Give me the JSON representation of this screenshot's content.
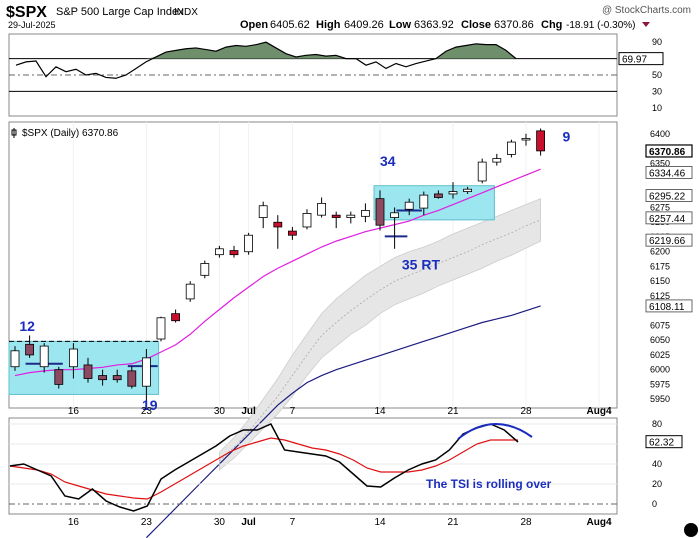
{
  "header": {
    "symbol": "$SPX",
    "name": "S&P 500 Large Cap Index",
    "exchange": "INDX",
    "date": "29-Jul-2025",
    "open_label": "Open",
    "open": "6405.62",
    "high_label": "High",
    "high": "6409.26",
    "low_label": "Low",
    "low": "6363.92",
    "close_label": "Close",
    "close": "6370.86",
    "chg_label": "Chg",
    "chg": "-18.91 (-0.30%)",
    "watermark": "@ StockCharts.com"
  },
  "colors": {
    "up_candle": "#ffffff",
    "down_candle": "#c8102e",
    "hollow_down": "#8b4a62",
    "ma_short": "#e01ee0",
    "ma_long": "#1c1c80",
    "band": "#e6e6e6",
    "rsi_fill": "#6f8f6c",
    "box_fill": "#8be2ec",
    "annot_text": "#1a2dbf",
    "tsi_line": "#000000",
    "tsi_signal": "#e01010"
  },
  "chart_data": [
    {
      "type": "line",
      "role": "upper-indicator",
      "y_ticks": [
        90,
        70,
        50,
        30,
        10
      ],
      "current_value": "69.97",
      "reference_lines": [
        70,
        50,
        30
      ],
      "x_index": [
        0,
        1,
        2,
        3,
        4,
        5,
        6,
        7,
        8,
        9,
        10,
        11,
        12,
        13,
        14,
        15,
        16,
        17,
        18,
        19,
        20,
        21,
        22,
        23,
        24,
        25,
        26,
        27,
        28,
        29,
        30,
        31,
        32,
        33,
        34,
        35,
        36,
        37,
        38,
        39,
        40,
        41,
        42,
        43,
        44,
        45,
        46,
        47,
        48,
        49,
        50
      ],
      "values": [
        62,
        66,
        67,
        48,
        60,
        54,
        57,
        50,
        52,
        47,
        46,
        50,
        58,
        66,
        72,
        78,
        80,
        82,
        83,
        81,
        79,
        84,
        86,
        85,
        87,
        90,
        83,
        76,
        72,
        74,
        75,
        73,
        74,
        70,
        70,
        62,
        66,
        58,
        64,
        60,
        64,
        67,
        70,
        79,
        84,
        86,
        88,
        87,
        87,
        80,
        70
      ]
    },
    {
      "type": "candlestick",
      "role": "price",
      "label": "$SPX (Daily) 6370.86",
      "y_ticks": [
        6400,
        6350,
        6300,
        6275,
        6250,
        6225,
        6200,
        6175,
        6150,
        6125,
        6100,
        6075,
        6050,
        6025,
        6000,
        5975,
        5950
      ],
      "y_tick_labels": [
        "6400",
        "6350",
        "6275",
        "6250",
        "6225",
        "6200",
        "6175",
        "6150",
        "6125",
        "6075",
        "6050",
        "6025",
        "6000",
        "5975",
        "5950"
      ],
      "ylim": [
        5935,
        6420
      ],
      "x_tick_labels": [
        "16",
        "23",
        "30",
        "Jul",
        "7",
        "14",
        "21",
        "28",
        "Aug4"
      ],
      "x_tick_index": [
        4,
        9,
        14,
        16,
        19,
        25,
        30,
        35,
        40
      ],
      "price_tags": [
        "6370.86",
        "6334.46",
        "6295.22",
        "6257.44",
        "6219.66",
        "6108.11"
      ],
      "price_tag_values": [
        6370.86,
        6334.46,
        6295.22,
        6257.44,
        6219.66,
        6108.11
      ],
      "candles": [
        {
          "i": 0,
          "o": 6005,
          "h": 6040,
          "l": 5998,
          "c": 6032,
          "d": false
        },
        {
          "i": 1,
          "o": 6043,
          "h": 6058,
          "l": 6020,
          "c": 6025,
          "d": true,
          "hollow": true
        },
        {
          "i": 2,
          "o": 6005,
          "h": 6045,
          "l": 5995,
          "c": 6040,
          "d": false
        },
        {
          "i": 3,
          "o": 6000,
          "h": 6005,
          "l": 5968,
          "c": 5975,
          "d": true,
          "hollow": true
        },
        {
          "i": 4,
          "o": 6005,
          "h": 6045,
          "l": 5985,
          "c": 6035,
          "d": false
        },
        {
          "i": 5,
          "o": 6008,
          "h": 6020,
          "l": 5978,
          "c": 5985,
          "d": true,
          "hollow": true
        },
        {
          "i": 6,
          "o": 5990,
          "h": 6000,
          "l": 5973,
          "c": 5983,
          "d": true,
          "hollow": true
        },
        {
          "i": 7,
          "o": 5990,
          "h": 6000,
          "l": 5978,
          "c": 5983,
          "d": true,
          "hollow": true
        },
        {
          "i": 8,
          "o": 5998,
          "h": 6006,
          "l": 5968,
          "c": 5972,
          "d": true,
          "hollow": true
        },
        {
          "i": 9,
          "o": 5972,
          "h": 6035,
          "l": 5945,
          "c": 6020,
          "d": false
        },
        {
          "i": 10,
          "o": 6052,
          "h": 6090,
          "l": 6048,
          "c": 6088,
          "d": false
        },
        {
          "i": 11,
          "o": 6095,
          "h": 6102,
          "l": 6080,
          "c": 6083,
          "d": true
        },
        {
          "i": 12,
          "o": 6120,
          "h": 6150,
          "l": 6115,
          "c": 6145,
          "d": false
        },
        {
          "i": 13,
          "o": 6160,
          "h": 6185,
          "l": 6155,
          "c": 6180,
          "d": false
        },
        {
          "i": 14,
          "o": 6195,
          "h": 6210,
          "l": 6190,
          "c": 6205,
          "d": false
        },
        {
          "i": 15,
          "o": 6202,
          "h": 6210,
          "l": 6190,
          "c": 6195,
          "d": true
        },
        {
          "i": 16,
          "o": 6200,
          "h": 6232,
          "l": 6195,
          "c": 6228,
          "d": false
        },
        {
          "i": 17,
          "o": 6258,
          "h": 6285,
          "l": 6240,
          "c": 6278,
          "d": false
        },
        {
          "i": 18,
          "o": 6250,
          "h": 6262,
          "l": 6205,
          "c": 6242,
          "d": true
        },
        {
          "i": 19,
          "o": 6235,
          "h": 6242,
          "l": 6220,
          "c": 6228,
          "d": true
        },
        {
          "i": 20,
          "o": 6242,
          "h": 6272,
          "l": 6238,
          "c": 6265,
          "d": false
        },
        {
          "i": 21,
          "o": 6262,
          "h": 6292,
          "l": 6258,
          "c": 6282,
          "d": false
        },
        {
          "i": 22,
          "o": 6262,
          "h": 6268,
          "l": 6240,
          "c": 6258,
          "d": true
        },
        {
          "i": 23,
          "o": 6258,
          "h": 6268,
          "l": 6248,
          "c": 6262,
          "d": false
        },
        {
          "i": 24,
          "o": 6260,
          "h": 6282,
          "l": 6250,
          "c": 6270,
          "d": false
        },
        {
          "i": 25,
          "o": 6290,
          "h": 6304,
          "l": 6236,
          "c": 6245,
          "d": true,
          "hollow": true
        },
        {
          "i": 26,
          "o": 6258,
          "h": 6275,
          "l": 6205,
          "c": 6266,
          "d": false
        },
        {
          "i": 27,
          "o": 6272,
          "h": 6290,
          "l": 6262,
          "c": 6284,
          "d": false
        },
        {
          "i": 28,
          "o": 6274,
          "h": 6302,
          "l": 6262,
          "c": 6296,
          "d": false
        },
        {
          "i": 29,
          "o": 6298,
          "h": 6304,
          "l": 6290,
          "c": 6292,
          "d": true,
          "hollow": true
        },
        {
          "i": 30,
          "o": 6298,
          "h": 6318,
          "l": 6290,
          "c": 6302,
          "d": false
        },
        {
          "i": 31,
          "o": 6302,
          "h": 6310,
          "l": 6298,
          "c": 6306,
          "d": false
        },
        {
          "i": 32,
          "o": 6320,
          "h": 6358,
          "l": 6316,
          "c": 6352,
          "d": false
        },
        {
          "i": 33,
          "o": 6352,
          "h": 6366,
          "l": 6346,
          "c": 6358,
          "d": false
        },
        {
          "i": 34,
          "o": 6365,
          "h": 6390,
          "l": 6360,
          "c": 6386,
          "d": false
        },
        {
          "i": 35,
          "o": 6390,
          "h": 6400,
          "l": 6380,
          "c": 6392,
          "d": false
        },
        {
          "i": 36,
          "o": 6405,
          "h": 6409,
          "l": 6363,
          "c": 6371,
          "d": true
        }
      ],
      "ma_short": [
        5990,
        5995,
        5998,
        6000,
        6000,
        6002,
        6004,
        6008,
        6010,
        6018,
        6030,
        6042,
        6060,
        6082,
        6102,
        6122,
        6140,
        6158,
        6172,
        6184,
        6196,
        6208,
        6218,
        6226,
        6234,
        6240,
        6246,
        6252,
        6262,
        6270,
        6280,
        6290,
        6300,
        6310,
        6320,
        6330,
        6340
      ],
      "ma_long": [
        5715,
        5740,
        5765,
        5790,
        5815,
        5840,
        5865,
        5890,
        5915,
        5940,
        5960,
        5978,
        5990,
        6000,
        6008,
        6016,
        6024,
        6032,
        6040,
        6048,
        6056,
        6064,
        6072,
        6080,
        6086,
        6092,
        6100,
        6108
      ],
      "ma_long_start_index": 9,
      "band_upper": [
        5860,
        5885,
        5915,
        5950,
        5985,
        6025,
        6060,
        6095,
        6120,
        6140,
        6160,
        6175,
        6190,
        6200,
        6208,
        6218,
        6230,
        6240,
        6250,
        6260,
        6270,
        6280,
        6290
      ],
      "band_mid": [
        5845,
        5868,
        5895,
        5925,
        5955,
        5990,
        6025,
        6058,
        6080,
        6100,
        6118,
        6135,
        6150,
        6160,
        6170,
        6180,
        6190,
        6200,
        6212,
        6222,
        6232,
        6244,
        6254
      ],
      "band_lower": [
        5830,
        5850,
        5875,
        5900,
        5925,
        5955,
        5990,
        6020,
        6040,
        6060,
        6075,
        6095,
        6110,
        6120,
        6130,
        6142,
        6152,
        6162,
        6172,
        6184,
        6194,
        6206,
        6218
      ],
      "band_start_index": 14,
      "annotations": [
        {
          "label": "12",
          "i": 0.3,
          "v": 6066
        },
        {
          "label": "19",
          "i": 8.7,
          "v": 5932
        },
        {
          "label": "34",
          "i": 25,
          "v": 6345
        },
        {
          "label": "35 RT",
          "i": 26.5,
          "v": 6170
        },
        {
          "label": "9",
          "i": 37.5,
          "v": 6387
        }
      ],
      "boxes": [
        {
          "i0": 0,
          "i1": 9.7,
          "v0": 5958,
          "v1": 6048
        },
        {
          "i0": 25,
          "i1": 32.7,
          "v0": 6254,
          "v1": 6312
        }
      ]
    },
    {
      "type": "line",
      "role": "lower-indicator",
      "y_ticks": [
        80,
        60,
        40,
        20,
        0
      ],
      "current_value": "62.32",
      "ylim": [
        -10,
        86
      ],
      "x_tick_labels": [
        "16",
        "23",
        "30",
        "Jul",
        "7",
        "14",
        "21",
        "28",
        "Aug4"
      ],
      "annotation": "The TSI is rolling over",
      "series": [
        {
          "role": "tsi",
          "values": [
            38,
            40,
            34,
            28,
            8,
            5,
            15,
            3,
            -3,
            -7,
            -2,
            25,
            34,
            42,
            50,
            58,
            68,
            74,
            74,
            80,
            54,
            52,
            50,
            48,
            42,
            30,
            18,
            17,
            26,
            34,
            40,
            44,
            54,
            70,
            76,
            80,
            74,
            62
          ]
        },
        {
          "role": "signal",
          "values": [
            38,
            36,
            34,
            30,
            22,
            18,
            14,
            10,
            8,
            6,
            5,
            12,
            20,
            28,
            36,
            44,
            52,
            58,
            62,
            66,
            64,
            60,
            56,
            54,
            50,
            44,
            36,
            32,
            32,
            32,
            34,
            38,
            44,
            52,
            60,
            64,
            64,
            64
          ]
        }
      ]
    }
  ]
}
